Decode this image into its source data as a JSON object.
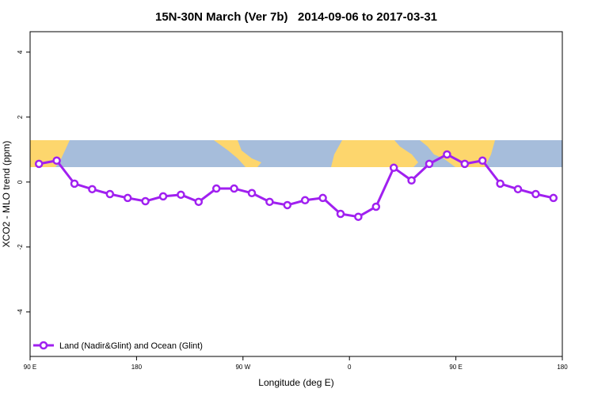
{
  "chart_data": {
    "type": "line",
    "title": "15N-30N March (Ver 7b)   2014-09-06 to 2017-03-31",
    "x_label": "Longitude (deg E)",
    "y_label": "XCO2 - MLO trend (ppm)",
    "x": [
      97.5,
      112.5,
      127.5,
      142.5,
      157.5,
      172.5,
      187.5,
      202.5,
      217.5,
      232.5,
      247.5,
      262.5,
      277.5,
      292.5,
      307.5,
      322.5,
      337.5,
      352.5,
      367.5,
      382.5,
      397.5,
      412.5,
      427.5,
      442.5,
      457.5,
      472.5,
      487.5,
      502.5,
      517.5,
      532.5
    ],
    "series": [
      {
        "name": "Land (Nadir&Glint) and Ocean (Glint)",
        "color": "#a020f0",
        "values": [
          0.56,
          0.66,
          -0.05,
          -0.22,
          -0.37,
          -0.49,
          -0.59,
          -0.44,
          -0.39,
          -0.61,
          -0.2,
          -0.2,
          -0.34,
          -0.61,
          -0.71,
          -0.56,
          -0.49,
          -0.98,
          -1.07,
          -0.76,
          0.44,
          0.05,
          0.56,
          0.85,
          0.56,
          0.66,
          -0.05,
          -0.22,
          -0.37,
          -0.49
        ]
      }
    ],
    "xlim": [
      90,
      540
    ],
    "xticks": [
      {
        "value": 90,
        "label": "90 E"
      },
      180,
      {
        "value": 270,
        "label": "90 W"
      },
      {
        "value": 360,
        "label": "0"
      },
      {
        "value": 450,
        "label": "90 E"
      },
      {
        "value": 540,
        "label": "180"
      }
    ],
    "ylim": [
      -5.37,
      4.63
    ],
    "yticks": [
      -4,
      -2,
      0,
      2,
      4
    ]
  }
}
